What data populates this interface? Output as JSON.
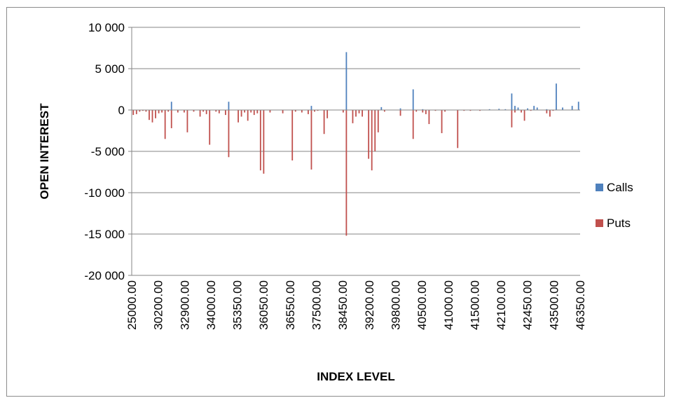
{
  "chart_data": {
    "type": "bar",
    "title": "",
    "xlabel": "INDEX LEVEL",
    "ylabel": "OPEN INTEREST",
    "ylim": [
      -20000,
      10000
    ],
    "yticks": [
      10000,
      5000,
      0,
      -5000,
      -10000,
      -15000,
      -20000
    ],
    "ytick_labels": [
      "10 000",
      "5 000",
      "0",
      "-5 000",
      "-10 000",
      "-15 000",
      "-20 000"
    ],
    "xtick_labels": [
      "25000.00",
      "30200.00",
      "32900.00",
      "34000.00",
      "35350.00",
      "36050.00",
      "36550.00",
      "37500.00",
      "38450.00",
      "39200.00",
      "39800.00",
      "40500.00",
      "41000.00",
      "41500.00",
      "42100.00",
      "42450.00",
      "43500.00",
      "46350.00"
    ],
    "grid": "horizontal",
    "legend_position": "right",
    "category_count": 141,
    "series": [
      {
        "name": "Calls",
        "color": "#4f81bd",
        "points": [
          {
            "i": 13,
            "v": 1000
          },
          {
            "i": 31,
            "v": 1000
          },
          {
            "i": 57,
            "v": 500
          },
          {
            "i": 68,
            "v": 7000
          },
          {
            "i": 79,
            "v": 350
          },
          {
            "i": 85,
            "v": 200
          },
          {
            "i": 89,
            "v": 2500
          },
          {
            "i": 92,
            "v": 100
          },
          {
            "i": 113,
            "v": 100
          },
          {
            "i": 116,
            "v": 150
          },
          {
            "i": 118,
            "v": 100
          },
          {
            "i": 120,
            "v": 2000
          },
          {
            "i": 121,
            "v": 500
          },
          {
            "i": 122,
            "v": 300
          },
          {
            "i": 125,
            "v": 200
          },
          {
            "i": 127,
            "v": 500
          },
          {
            "i": 128,
            "v": 300
          },
          {
            "i": 131,
            "v": 100
          },
          {
            "i": 134,
            "v": 3200
          },
          {
            "i": 136,
            "v": 300
          },
          {
            "i": 139,
            "v": 500
          },
          {
            "i": 141,
            "v": 1000
          }
        ]
      },
      {
        "name": "Puts",
        "color": "#c0504d",
        "points": [
          {
            "i": 1,
            "v": -600
          },
          {
            "i": 2,
            "v": -500
          },
          {
            "i": 3,
            "v": -200
          },
          {
            "i": 4,
            "v": -100
          },
          {
            "i": 5,
            "v": -200
          },
          {
            "i": 6,
            "v": -1200
          },
          {
            "i": 7,
            "v": -1500
          },
          {
            "i": 8,
            "v": -1000
          },
          {
            "i": 9,
            "v": -400
          },
          {
            "i": 10,
            "v": -300
          },
          {
            "i": 11,
            "v": -3500
          },
          {
            "i": 12,
            "v": -200
          },
          {
            "i": 13,
            "v": -2200
          },
          {
            "i": 15,
            "v": -300
          },
          {
            "i": 17,
            "v": -300
          },
          {
            "i": 18,
            "v": -2700
          },
          {
            "i": 20,
            "v": -200
          },
          {
            "i": 22,
            "v": -800
          },
          {
            "i": 23,
            "v": -200
          },
          {
            "i": 24,
            "v": -500
          },
          {
            "i": 25,
            "v": -4200
          },
          {
            "i": 27,
            "v": -200
          },
          {
            "i": 28,
            "v": -400
          },
          {
            "i": 30,
            "v": -600
          },
          {
            "i": 31,
            "v": -5700
          },
          {
            "i": 34,
            "v": -1500
          },
          {
            "i": 35,
            "v": -800
          },
          {
            "i": 36,
            "v": -300
          },
          {
            "i": 37,
            "v": -1300
          },
          {
            "i": 38,
            "v": -300
          },
          {
            "i": 39,
            "v": -600
          },
          {
            "i": 40,
            "v": -400
          },
          {
            "i": 41,
            "v": -7300
          },
          {
            "i": 42,
            "v": -7700
          },
          {
            "i": 44,
            "v": -300
          },
          {
            "i": 48,
            "v": -400
          },
          {
            "i": 51,
            "v": -6100
          },
          {
            "i": 52,
            "v": -200
          },
          {
            "i": 54,
            "v": -300
          },
          {
            "i": 56,
            "v": -500
          },
          {
            "i": 57,
            "v": -7200
          },
          {
            "i": 58,
            "v": -200
          },
          {
            "i": 59,
            "v": -100
          },
          {
            "i": 61,
            "v": -2900
          },
          {
            "i": 62,
            "v": -1000
          },
          {
            "i": 67,
            "v": -300
          },
          {
            "i": 68,
            "v": -15200
          },
          {
            "i": 70,
            "v": -1600
          },
          {
            "i": 71,
            "v": -800
          },
          {
            "i": 72,
            "v": -400
          },
          {
            "i": 73,
            "v": -800
          },
          {
            "i": 75,
            "v": -5900
          },
          {
            "i": 76,
            "v": -7300
          },
          {
            "i": 77,
            "v": -5000
          },
          {
            "i": 78,
            "v": -2700
          },
          {
            "i": 80,
            "v": -200
          },
          {
            "i": 85,
            "v": -700
          },
          {
            "i": 89,
            "v": -3500
          },
          {
            "i": 90,
            "v": -200
          },
          {
            "i": 92,
            "v": -300
          },
          {
            "i": 93,
            "v": -500
          },
          {
            "i": 94,
            "v": -1700
          },
          {
            "i": 96,
            "v": -100
          },
          {
            "i": 98,
            "v": -2800
          },
          {
            "i": 99,
            "v": -200
          },
          {
            "i": 103,
            "v": -4600
          },
          {
            "i": 105,
            "v": -100
          },
          {
            "i": 107,
            "v": -100
          },
          {
            "i": 110,
            "v": -100
          },
          {
            "i": 120,
            "v": -2100
          },
          {
            "i": 121,
            "v": -300
          },
          {
            "i": 123,
            "v": -300
          },
          {
            "i": 124,
            "v": -1300
          },
          {
            "i": 126,
            "v": -100
          },
          {
            "i": 131,
            "v": -400
          },
          {
            "i": 132,
            "v": -800
          },
          {
            "i": 133,
            "v": -100
          }
        ]
      }
    ]
  }
}
